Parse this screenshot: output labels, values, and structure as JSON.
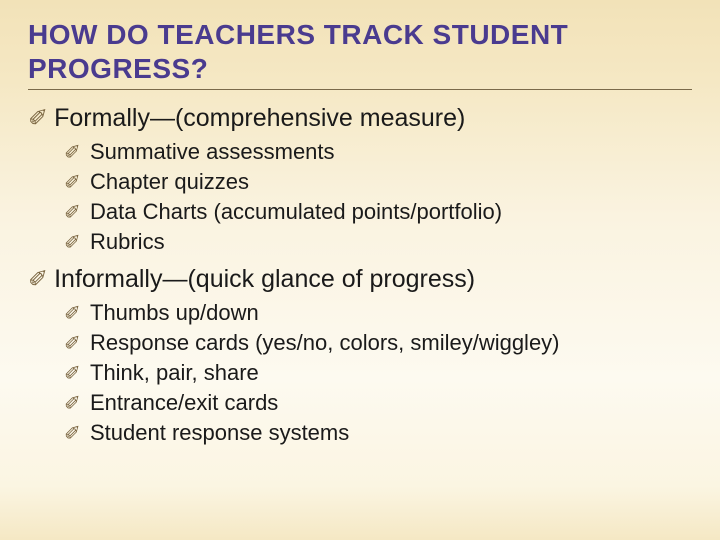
{
  "title": "HOW DO TEACHERS TRACK STUDENT PROGRESS?",
  "title_color": "#4a3b8f",
  "title_fontsize": 28,
  "underline_color": "#7a6a4a",
  "bullet_glyph": "✐",
  "bullet_color": "#7a6540",
  "body_fontsize_main": 25,
  "body_fontsize_sub": 22,
  "background_gradient": [
    "#f2e2b8",
    "#f5e8c4",
    "#faf3e0",
    "#fdfaf0",
    "#fbf5e2",
    "#f5e8c4"
  ],
  "sections": [
    {
      "heading": "Formally—(comprehensive measure)",
      "items": [
        "Summative assessments",
        "Chapter quizzes",
        "Data Charts (accumulated points/portfolio)",
        "Rubrics"
      ]
    },
    {
      "heading": "Informally—(quick glance of progress)",
      "items": [
        "Thumbs up/down",
        "Response cards (yes/no, colors, smiley/wiggley)",
        "Think, pair, share",
        "Entrance/exit cards",
        "Student response systems"
      ]
    }
  ]
}
